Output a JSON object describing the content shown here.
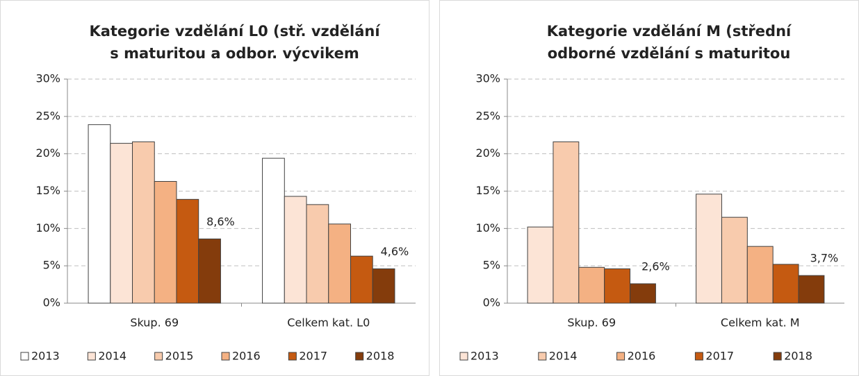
{
  "chart_data": [
    {
      "type": "bar",
      "title": [
        "Kategorie vzdělání L0 (stř. vzdělání",
        "s maturitou a odbor. výcvikem"
      ],
      "categories": [
        "Skup. 69",
        "Celkem kat. L0"
      ],
      "series": [
        {
          "name": "2013",
          "color": "#ffffff",
          "values": [
            23.9,
            19.4
          ]
        },
        {
          "name": "2014",
          "color": "#fce4d6",
          "values": [
            21.4,
            14.3
          ]
        },
        {
          "name": "2015",
          "color": "#f8cbad",
          "values": [
            21.6,
            13.2
          ]
        },
        {
          "name": "2016",
          "color": "#f4b183",
          "values": [
            16.3,
            10.6
          ]
        },
        {
          "name": "2017",
          "color": "#c55a11",
          "values": [
            13.9,
            6.3
          ]
        },
        {
          "name": "2018",
          "color": "#843c0c",
          "values": [
            8.6,
            4.6
          ],
          "value_labels": [
            "8,6%",
            "4,6%"
          ]
        }
      ],
      "ylim": [
        0,
        30
      ],
      "yticks": [
        {
          "value": 0,
          "label": "0%"
        },
        {
          "value": 5,
          "label": "5%"
        },
        {
          "value": 10,
          "label": "10%"
        },
        {
          "value": 15,
          "label": "15%"
        },
        {
          "value": 20,
          "label": "20%"
        },
        {
          "value": 25,
          "label": "25%"
        },
        {
          "value": 30,
          "label": "30%"
        }
      ],
      "grid": true,
      "legend": "bottom"
    },
    {
      "type": "bar",
      "title": [
        "Kategorie vzdělání M (střední",
        "odborné vzdělání s maturitou"
      ],
      "categories": [
        "Skup. 69",
        "Celkem kat. M"
      ],
      "series": [
        {
          "name": "2013",
          "color": "#fce4d6",
          "values": [
            10.2,
            14.6
          ]
        },
        {
          "name": "2014",
          "color": "#f8cbad",
          "values": [
            21.6,
            11.5
          ]
        },
        {
          "name": "2016",
          "color": "#f4b183",
          "values": [
            4.8,
            7.6
          ]
        },
        {
          "name": "2017",
          "color": "#c55a11",
          "values": [
            4.6,
            5.2
          ]
        },
        {
          "name": "2018",
          "color": "#843c0c",
          "values": [
            2.6,
            3.7
          ],
          "value_labels": [
            "2,6%",
            "3,7%"
          ]
        }
      ],
      "ylim": [
        0,
        30
      ],
      "yticks": [
        {
          "value": 0,
          "label": "0%"
        },
        {
          "value": 5,
          "label": "5%"
        },
        {
          "value": 10,
          "label": "10%"
        },
        {
          "value": 15,
          "label": "15%"
        },
        {
          "value": 20,
          "label": "20%"
        },
        {
          "value": 25,
          "label": "25%"
        },
        {
          "value": 30,
          "label": "30%"
        }
      ],
      "grid": true,
      "legend": "bottom"
    }
  ]
}
